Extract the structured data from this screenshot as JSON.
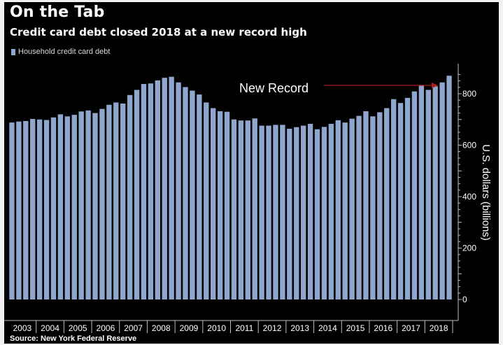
{
  "title": "On the Tab",
  "subtitle": "Credit card debt closed 2018 at a new record high",
  "source": "Source: New York Federal Reserve",
  "colors": {
    "background": "#000000",
    "bar": "#8fa6cf",
    "annotation_arrow": "#b01c1c",
    "axis": "#bfbfbf",
    "text": "#ffffff"
  },
  "chart_data": {
    "type": "bar",
    "legend": [
      "Household credit card debt"
    ],
    "legend_position": "top-left",
    "annotation": "New Record",
    "ylabel": "U.S. dollars (billions)",
    "ylim": [
      0,
      925
    ],
    "y_ticks": [
      0,
      200,
      400,
      600,
      800
    ],
    "y_axis_side": "right",
    "grid": false,
    "x_year_labels": [
      "2003",
      "2004",
      "2005",
      "2006",
      "2007",
      "2008",
      "2009",
      "2010",
      "2011",
      "2012",
      "2013",
      "2014",
      "2015",
      "2016",
      "2017",
      "2018"
    ],
    "series": [
      {
        "name": "Household credit card debt",
        "values": [
          688,
          692,
          694,
          702,
          700,
          698,
          708,
          720,
          712,
          718,
          731,
          735,
          725,
          741,
          757,
          766,
          762,
          795,
          815,
          838,
          840,
          852,
          862,
          866,
          844,
          826,
          812,
          797,
          766,
          744,
          732,
          730,
          700,
          696,
          696,
          704,
          676,
          676,
          679,
          679,
          664,
          670,
          676,
          683,
          662,
          671,
          683,
          697,
          688,
          703,
          714,
          732,
          712,
          728,
          744,
          779,
          764,
          784,
          809,
          834,
          815,
          829,
          844,
          870
        ]
      }
    ]
  }
}
